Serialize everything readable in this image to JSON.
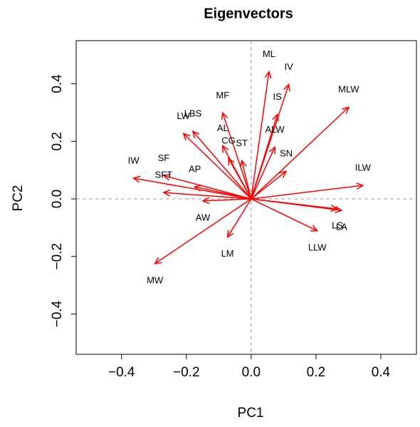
{
  "chart_data": {
    "type": "biplot",
    "title": "Eigenvectors",
    "x_label": "PC1",
    "y_label": "PC2",
    "color": "#ff0000",
    "xlim": [
      -0.54,
      0.51
    ],
    "ylim": [
      -0.54,
      0.55
    ],
    "xticks": [
      {
        "value": -0.4,
        "label": "−0.4"
      },
      {
        "value": -0.2,
        "label": "−0.2"
      },
      {
        "value": 0,
        "label": "0.0"
      },
      {
        "value": 0.2,
        "label": "0.2"
      },
      {
        "value": 0.4,
        "label": "0.4"
      }
    ],
    "yticks": [
      {
        "value": -0.4,
        "label": "−0.4"
      },
      {
        "value": -0.2,
        "label": "−0.2"
      },
      {
        "value": 0,
        "label": "0.0"
      },
      {
        "value": 0.2,
        "label": "0.2"
      },
      {
        "value": 0.4,
        "label": "0.4"
      }
    ],
    "reference_lines": [
      0,
      0
    ],
    "vectors": [
      {
        "name": "ML",
        "x": 0.055,
        "y": 0.442
      },
      {
        "name": "IV",
        "x": 0.116,
        "y": 0.398
      },
      {
        "name": "MLW",
        "x": 0.301,
        "y": 0.319
      },
      {
        "name": "IS",
        "x": 0.081,
        "y": 0.294
      },
      {
        "name": "ALW",
        "x": 0.073,
        "y": 0.18
      },
      {
        "name": "SN",
        "x": 0.108,
        "y": 0.096
      },
      {
        "name": "ILW",
        "x": 0.345,
        "y": 0.047
      },
      {
        "name": "LS",
        "x": 0.266,
        "y": -0.035
      },
      {
        "name": "LA",
        "x": 0.279,
        "y": -0.04
      },
      {
        "name": "LLW",
        "x": 0.204,
        "y": -0.111
      },
      {
        "name": "LM",
        "x": -0.073,
        "y": -0.133
      },
      {
        "name": "MW",
        "x": -0.297,
        "y": -0.225
      },
      {
        "name": "AW",
        "x": -0.149,
        "y": -0.007
      },
      {
        "name": "IW",
        "x": -0.363,
        "y": 0.072
      },
      {
        "name": "SF",
        "x": -0.27,
        "y": 0.081
      },
      {
        "name": "SFT",
        "x": -0.27,
        "y": 0.022
      },
      {
        "name": "AP",
        "x": -0.174,
        "y": 0.042
      },
      {
        "name": "LW",
        "x": -0.209,
        "y": 0.227
      },
      {
        "name": "LBS",
        "x": -0.18,
        "y": 0.235
      },
      {
        "name": "MF",
        "x": -0.088,
        "y": 0.299
      },
      {
        "name": "AL",
        "x": -0.088,
        "y": 0.185
      },
      {
        "name": "CG",
        "x": -0.07,
        "y": 0.141
      },
      {
        "name": "ST",
        "x": -0.029,
        "y": 0.133
      }
    ]
  }
}
